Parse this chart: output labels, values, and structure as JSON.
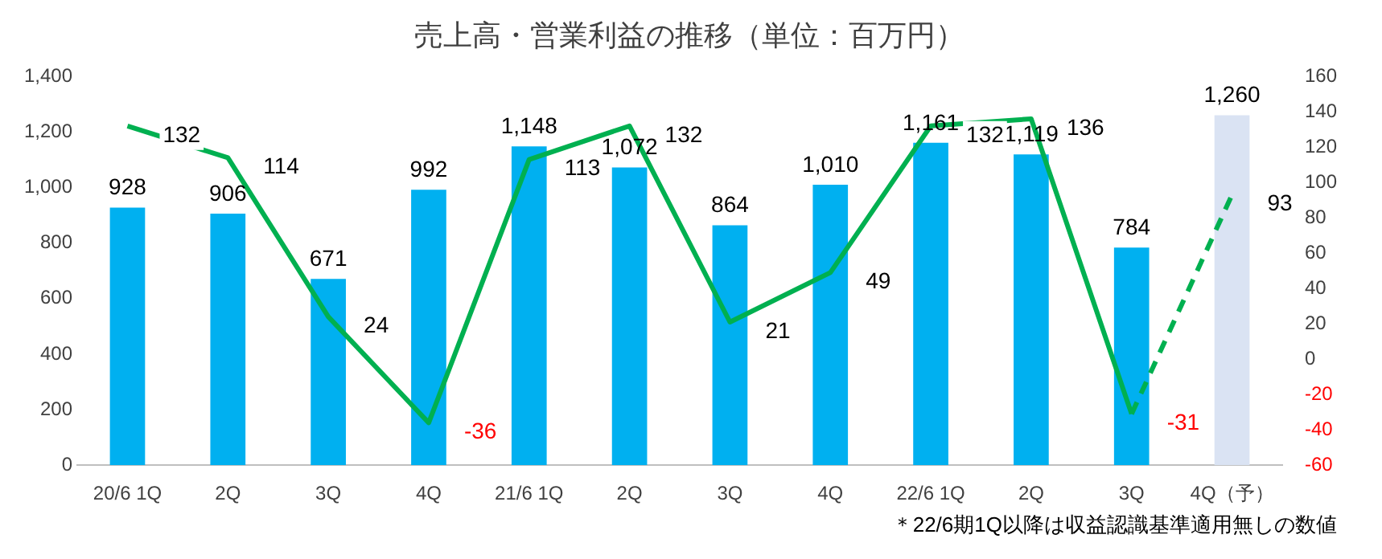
{
  "chart_data": {
    "type": "bar",
    "title": "売上高・営業利益の推移（単位：百万円）",
    "categories": [
      "20/6 1Q",
      "2Q",
      "3Q",
      "4Q",
      "21/6 1Q",
      "2Q",
      "3Q",
      "4Q",
      "22/6 1Q",
      "2Q",
      "3Q",
      "4Q（予）"
    ],
    "series": [
      {
        "type": "bar",
        "colors": [
          "#00b0f0",
          "#00b0f0",
          "#00b0f0",
          "#00b0f0",
          "#00b0f0",
          "#00b0f0",
          "#00b0f0",
          "#00b0f0",
          "#00b0f0",
          "#00b0f0",
          "#00b0f0",
          "#dae3f3"
        ],
        "values": [
          928,
          906,
          671,
          992,
          1148,
          1072,
          864,
          1010,
          1161,
          1119,
          784,
          1260
        ],
        "value_labels": [
          "928",
          "906",
          "671",
          "992",
          "1,148",
          "1,072",
          "864",
          "1,010",
          "1,161",
          "1,119",
          "784",
          "1,260"
        ]
      },
      {
        "type": "line",
        "axis": "y2",
        "color": "#00b050",
        "line_style": "solid",
        "values": [
          132,
          114,
          24,
          -36,
          113,
          132,
          21,
          49,
          132,
          136,
          -31,
          null
        ],
        "value_labels": [
          "132",
          "114",
          "24",
          "-36",
          "113",
          "132",
          "21",
          "49",
          "132",
          "136",
          "-31",
          null
        ]
      },
      {
        "type": "line",
        "axis": "y2",
        "color": "#00b050",
        "line_style": "dashed",
        "values": [
          null,
          null,
          null,
          null,
          null,
          null,
          null,
          null,
          null,
          null,
          -31,
          93
        ],
        "value_labels": [
          null,
          null,
          null,
          null,
          null,
          null,
          null,
          null,
          null,
          null,
          null,
          "93"
        ]
      }
    ],
    "ylim": [
      0,
      1400
    ],
    "yticks": [
      0,
      200,
      400,
      600,
      800,
      {
        "value": 1000,
        "label": "1,000"
      },
      {
        "value": 1200,
        "label": "1,200"
      },
      {
        "value": 1400,
        "label": "1,400"
      }
    ],
    "y2lim": [
      -60,
      160
    ],
    "y2ticks": [
      -60,
      -40,
      -20,
      0,
      20,
      40,
      60,
      80,
      100,
      120,
      140,
      160
    ],
    "marker": "none",
    "legend": false,
    "annotations": [
      "＊22/6期1Q以降は収益認識基準適用無しの数値"
    ]
  }
}
